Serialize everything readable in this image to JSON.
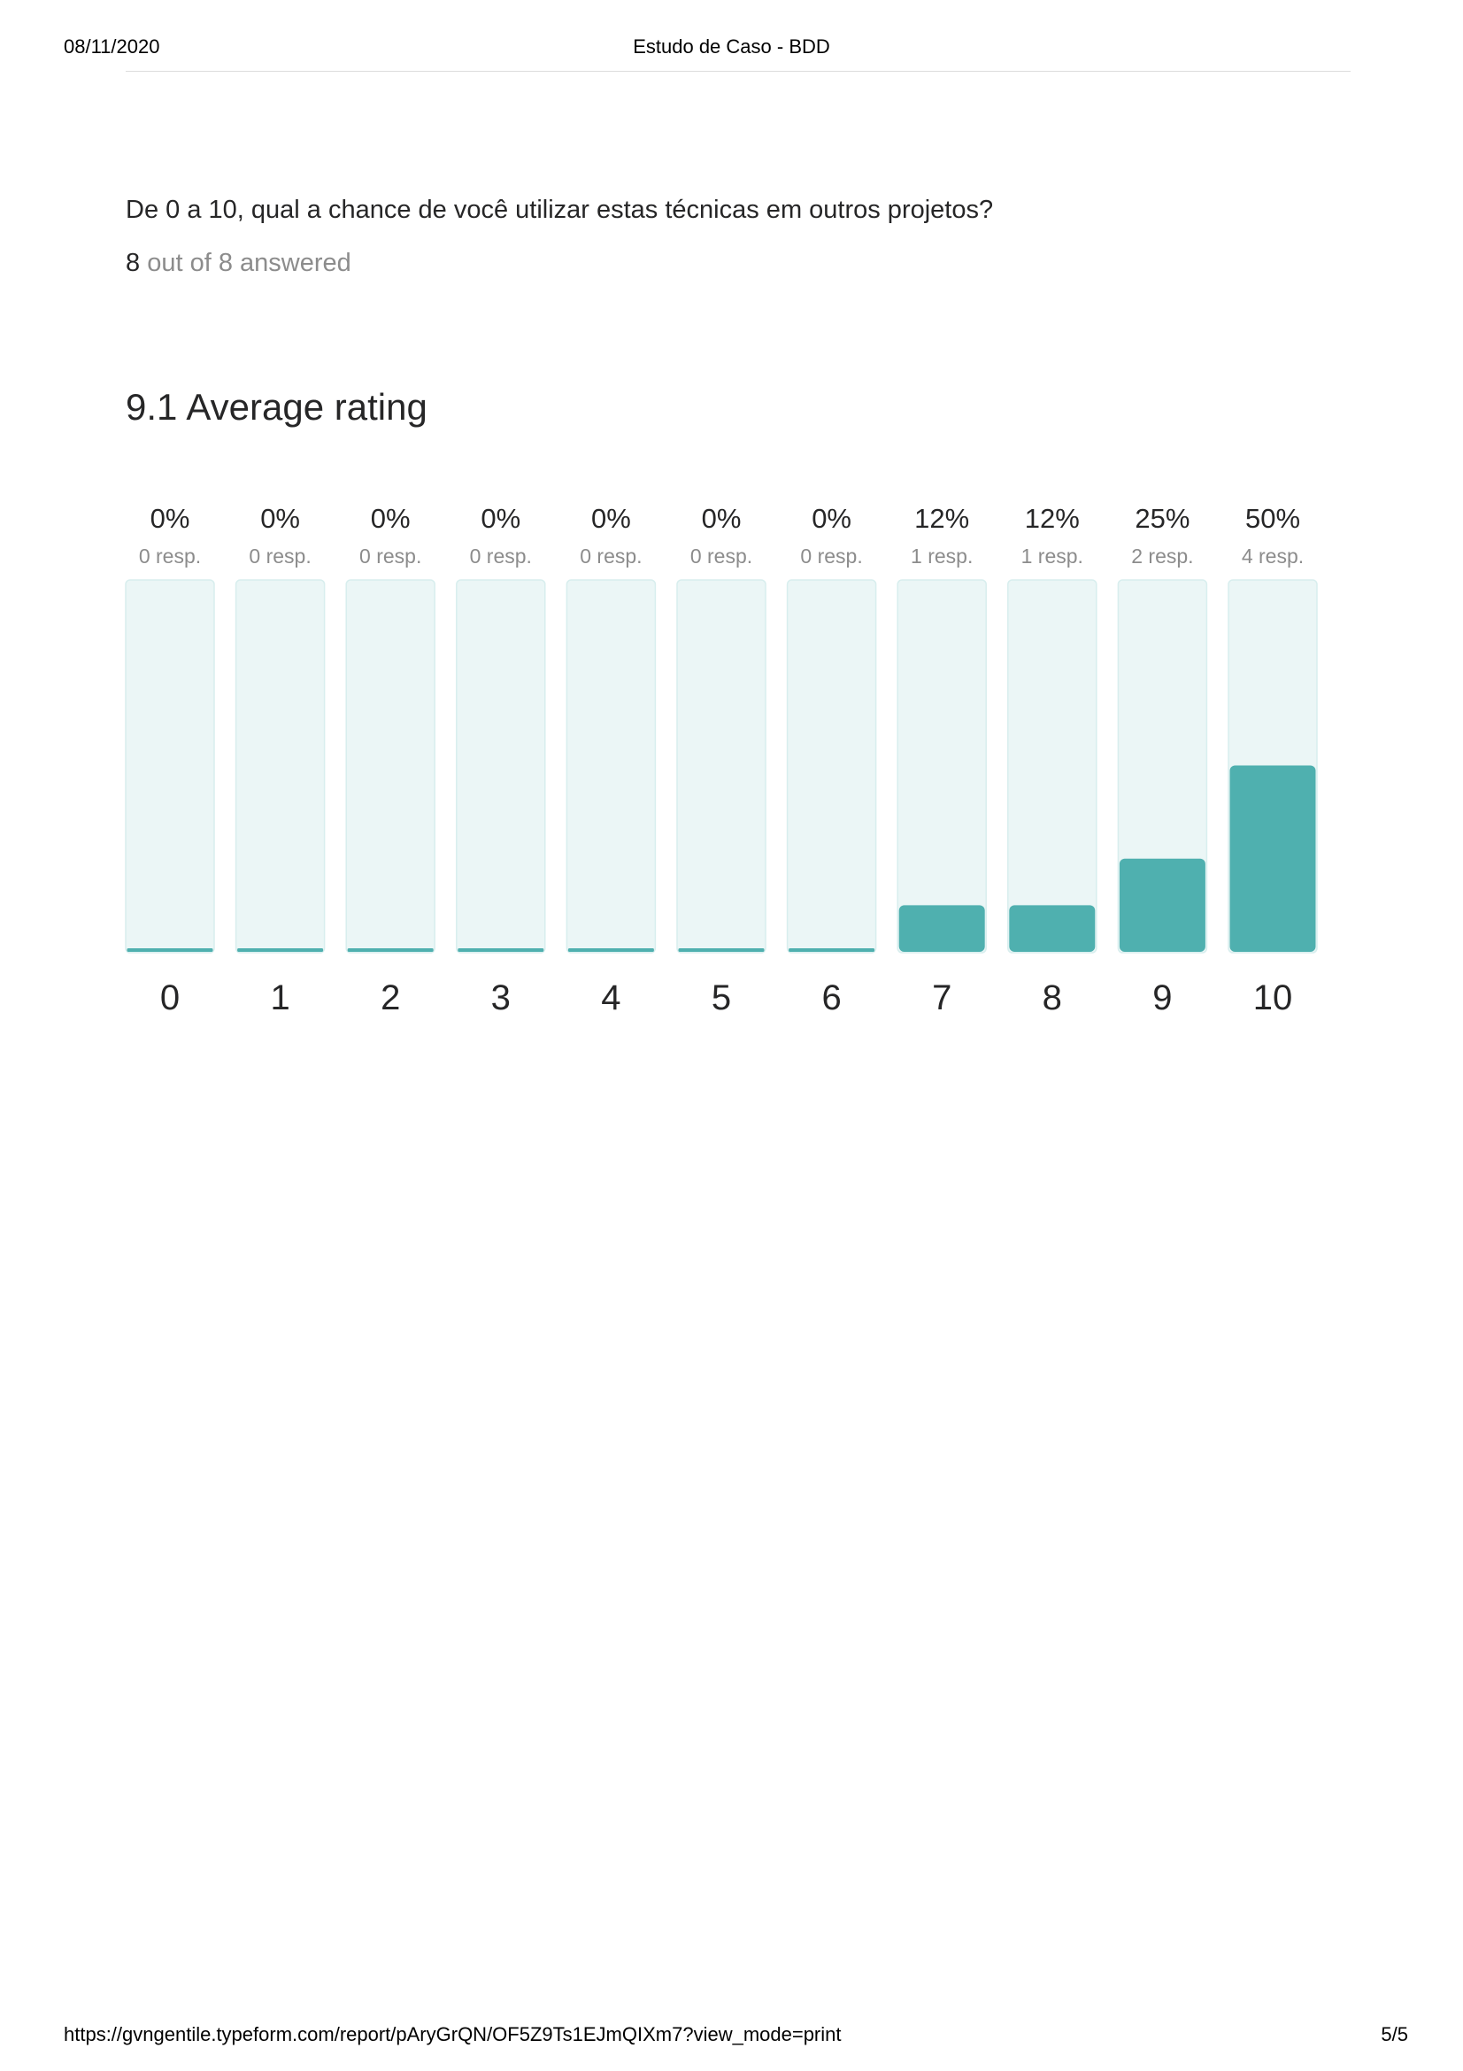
{
  "print_header": {
    "date": "08/11/2020",
    "title": "Estudo de Caso - BDD"
  },
  "print_footer": {
    "url": "https://gvngentile.typeform.com/report/pAryGrQN/OF5Z9Ts1EJmQIXm7?view_mode=print",
    "page": "5/5"
  },
  "question": {
    "text": "De 0 a 10, qual a chance de você utilizar estas técnicas em outros projetos?",
    "answered_count": "8",
    "answered_suffix": "out of 8 answered",
    "average_value": "9.1",
    "average_label": "Average rating"
  },
  "colors": {
    "bar_fill": "#4fb0af",
    "bar_track": "#ebf6f6",
    "bar_track_border": "#d8eeee"
  },
  "chart_data": {
    "type": "bar",
    "categories": [
      "0",
      "1",
      "2",
      "3",
      "4",
      "5",
      "6",
      "7",
      "8",
      "9",
      "10"
    ],
    "percent_labels": [
      "0%",
      "0%",
      "0%",
      "0%",
      "0%",
      "0%",
      "0%",
      "12%",
      "12%",
      "25%",
      "50%"
    ],
    "response_labels": [
      "0 resp.",
      "0 resp.",
      "0 resp.",
      "0 resp.",
      "0 resp.",
      "0 resp.",
      "0 resp.",
      "1 resp.",
      "1 resp.",
      "2 resp.",
      "4 resp."
    ],
    "values": [
      0,
      0,
      0,
      0,
      0,
      0,
      0,
      1,
      1,
      2,
      4
    ],
    "ylim": [
      0,
      8
    ]
  }
}
